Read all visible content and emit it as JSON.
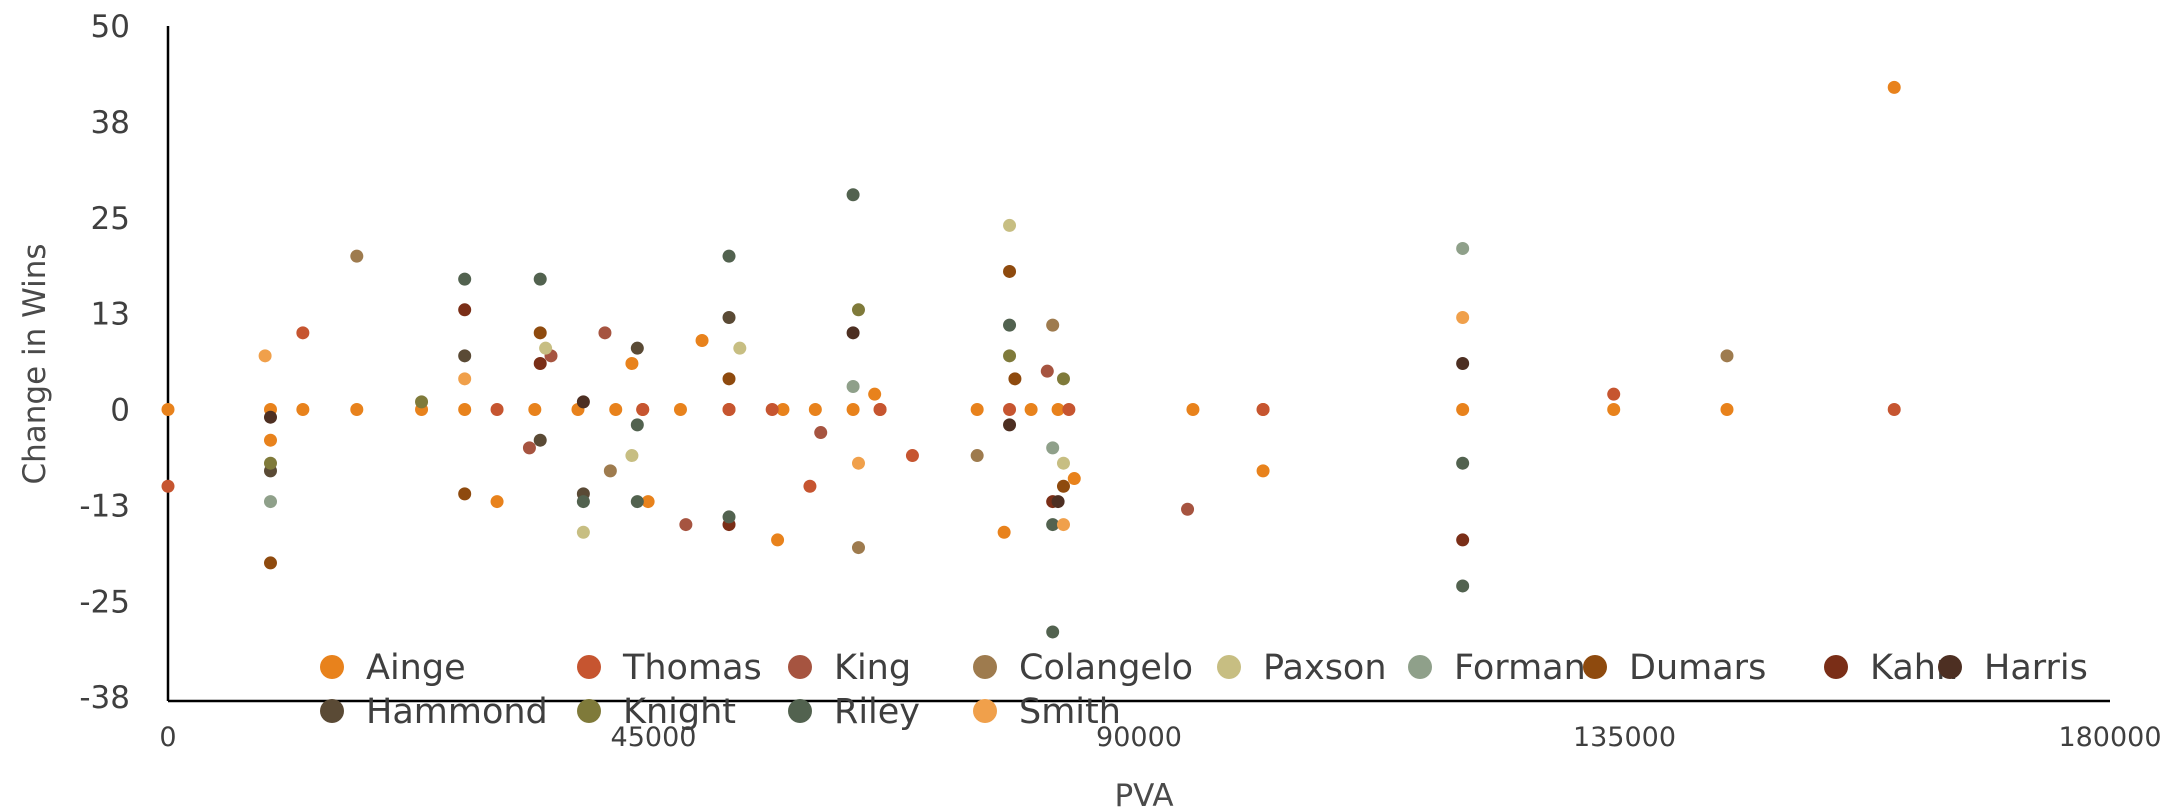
{
  "chart_data": {
    "type": "scatter",
    "title": "",
    "xlabel": "PVA",
    "ylabel": "Change in Wins",
    "xlim": [
      0,
      180000
    ],
    "ylim": [
      -38,
      50
    ],
    "x_ticks": [
      "0",
      "45000",
      "90000",
      "135000",
      "180000"
    ],
    "y_ticks": [
      "50",
      "38",
      "25",
      "13",
      "0",
      "-13",
      "-25",
      "-38"
    ],
    "x_tick_values": [
      0,
      45000,
      90000,
      135000,
      180000
    ],
    "y_tick_values": [
      50,
      37.5,
      25,
      12.5,
      0,
      -12.5,
      -25,
      -37.5
    ],
    "grid": false,
    "legend_position": "bottom",
    "series": [
      {
        "name": "Ainge",
        "color": "#E8821C",
        "points": [
          [
            0,
            0
          ],
          [
            9500,
            0
          ],
          [
            12500,
            0
          ],
          [
            17500,
            0
          ],
          [
            23500,
            0
          ],
          [
            27500,
            0
          ],
          [
            34000,
            0
          ],
          [
            38000,
            0
          ],
          [
            41500,
            0
          ],
          [
            44000,
            0
          ],
          [
            47500,
            0
          ],
          [
            52000,
            0
          ],
          [
            57000,
            0
          ],
          [
            60000,
            0
          ],
          [
            63500,
            0
          ],
          [
            66000,
            0
          ],
          [
            75000,
            0
          ],
          [
            80000,
            0
          ],
          [
            82500,
            0
          ],
          [
            95000,
            0
          ],
          [
            101500,
            0
          ],
          [
            120000,
            0
          ],
          [
            134000,
            0
          ],
          [
            144500,
            0
          ],
          [
            9500,
            -4
          ],
          [
            30500,
            -12
          ],
          [
            43000,
            6
          ],
          [
            44500,
            -12
          ],
          [
            65500,
            2
          ],
          [
            77500,
            -16
          ],
          [
            49500,
            9
          ],
          [
            84000,
            -9
          ],
          [
            56500,
            -17
          ],
          [
            101500,
            -8
          ],
          [
            160000,
            42
          ]
        ]
      },
      {
        "name": "Thomas",
        "color": "#C65530",
        "points": [
          [
            0,
            -10
          ],
          [
            12500,
            10
          ],
          [
            30500,
            0
          ],
          [
            44000,
            0
          ],
          [
            52000,
            0
          ],
          [
            56000,
            0
          ],
          [
            59500,
            -10
          ],
          [
            66000,
            0
          ],
          [
            69000,
            -6
          ],
          [
            78000,
            0
          ],
          [
            83500,
            0
          ],
          [
            101500,
            0
          ],
          [
            134000,
            2
          ],
          [
            160000,
            0
          ]
        ]
      },
      {
        "name": "King",
        "color": "#A65440",
        "points": [
          [
            33500,
            -5
          ],
          [
            35500,
            7
          ],
          [
            40500,
            10
          ],
          [
            48000,
            -15
          ],
          [
            60500,
            -3
          ],
          [
            81500,
            5
          ],
          [
            94500,
            -13
          ]
        ]
      },
      {
        "name": "Colangelo",
        "color": "#9E7B4E",
        "points": [
          [
            17500,
            20
          ],
          [
            41000,
            -8
          ],
          [
            64000,
            -18
          ],
          [
            75000,
            -6
          ],
          [
            82000,
            11
          ],
          [
            144500,
            7
          ]
        ]
      },
      {
        "name": "Paxson",
        "color": "#C7BE82",
        "points": [
          [
            35000,
            8
          ],
          [
            38500,
            -16
          ],
          [
            43000,
            -6
          ],
          [
            53000,
            8
          ],
          [
            78000,
            24
          ],
          [
            83000,
            -7
          ]
        ]
      },
      {
        "name": "Forman",
        "color": "#8FA08A",
        "points": [
          [
            9500,
            -12
          ],
          [
            63500,
            3
          ],
          [
            82000,
            -5
          ],
          [
            120000,
            21
          ]
        ]
      },
      {
        "name": "Dumars",
        "color": "#8E4A0E",
        "points": [
          [
            9500,
            -20
          ],
          [
            27500,
            -11
          ],
          [
            34500,
            10
          ],
          [
            52000,
            4
          ],
          [
            78000,
            18
          ],
          [
            78500,
            4
          ],
          [
            83000,
            -10
          ]
        ]
      },
      {
        "name": "Kahn",
        "color": "#7A2E17",
        "points": [
          [
            27500,
            13
          ],
          [
            34500,
            6
          ],
          [
            52000,
            -15
          ],
          [
            82000,
            -12
          ],
          [
            120000,
            -17
          ]
        ]
      },
      {
        "name": "Harris",
        "color": "#4D2F22",
        "points": [
          [
            9500,
            -1
          ],
          [
            38500,
            1
          ],
          [
            63500,
            10
          ],
          [
            78000,
            -2
          ],
          [
            82500,
            -12
          ],
          [
            120000,
            6
          ]
        ]
      },
      {
        "name": "Hammond",
        "color": "#5A4A35",
        "points": [
          [
            9500,
            -8
          ],
          [
            27500,
            7
          ],
          [
            34500,
            -4
          ],
          [
            38500,
            -11
          ],
          [
            43500,
            8
          ],
          [
            52000,
            12
          ]
        ]
      },
      {
        "name": "Knight",
        "color": "#7F7A3A",
        "points": [
          [
            23500,
            1
          ],
          [
            9500,
            -7
          ],
          [
            64000,
            13
          ],
          [
            78000,
            7
          ],
          [
            83000,
            4
          ]
        ]
      },
      {
        "name": "Riley",
        "color": "#52624F",
        "points": [
          [
            27500,
            17
          ],
          [
            34500,
            17
          ],
          [
            38500,
            -12
          ],
          [
            43500,
            -2
          ],
          [
            43500,
            -12
          ],
          [
            52000,
            20
          ],
          [
            52000,
            -14
          ],
          [
            63500,
            28
          ],
          [
            78000,
            11
          ],
          [
            82000,
            -15
          ],
          [
            82000,
            -29
          ],
          [
            120000,
            -7
          ],
          [
            120000,
            -23
          ]
        ]
      },
      {
        "name": "Smith",
        "color": "#F0A04B",
        "points": [
          [
            9000,
            7
          ],
          [
            27500,
            4
          ],
          [
            64000,
            -7
          ],
          [
            83000,
            -15
          ],
          [
            120000,
            12
          ]
        ]
      }
    ]
  }
}
